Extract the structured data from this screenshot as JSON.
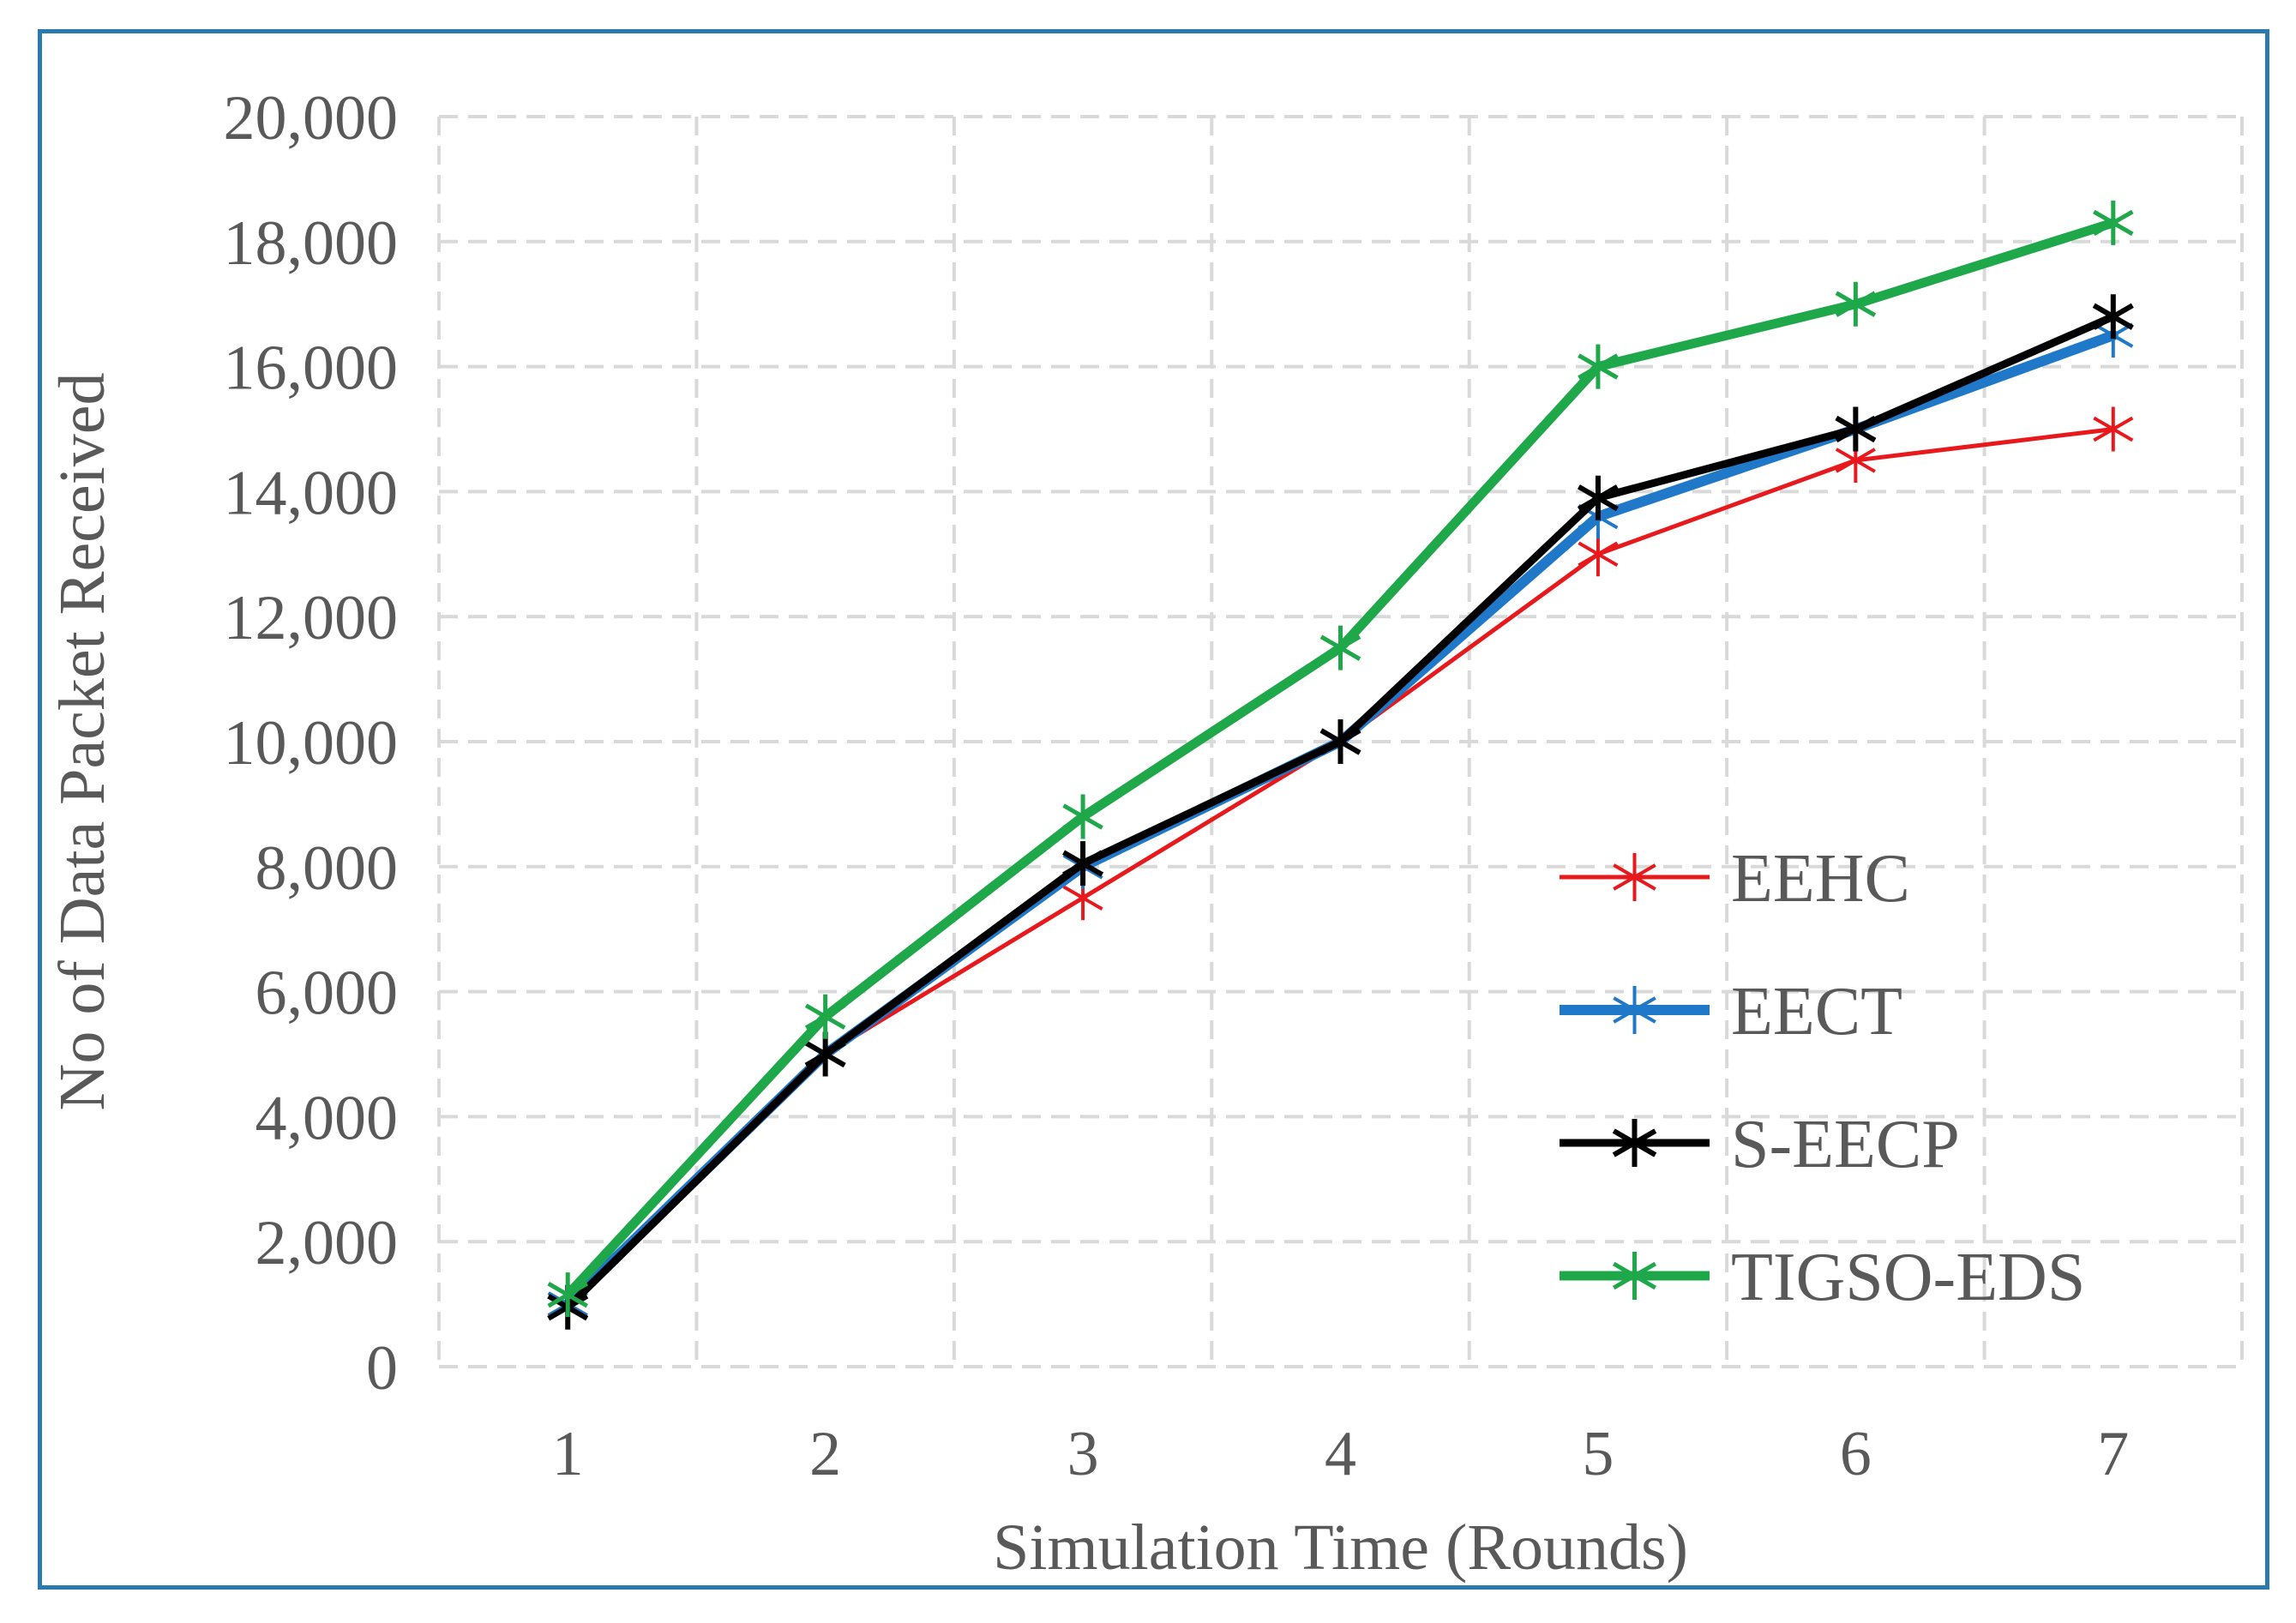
{
  "chart_data": {
    "type": "line",
    "title": "",
    "xlabel": "Simulation Time (Rounds)",
    "ylabel": "No of Data Packet Received",
    "categories": [
      "1",
      "2",
      "3",
      "4",
      "5",
      "6",
      "7"
    ],
    "ylim": [
      0,
      20000
    ],
    "yticks": [
      0,
      2000,
      4000,
      6000,
      8000,
      10000,
      12000,
      14000,
      16000,
      18000,
      20000
    ],
    "ytick_labels": [
      "0",
      "2,000",
      "4,000",
      "6,000",
      "8,000",
      "10,000",
      "12,000",
      "14,000",
      "16,000",
      "18,000",
      "20,000"
    ],
    "grid": true,
    "legend_position": "bottom-right",
    "series": [
      {
        "name": "EEHC",
        "color": "#e8191c",
        "values": [
          1000,
          5000,
          7500,
          10000,
          13000,
          14500,
          15000
        ]
      },
      {
        "name": "EECT",
        "color": "#1f78c8",
        "values": [
          1000,
          5000,
          8000,
          10000,
          13600,
          15000,
          16500
        ]
      },
      {
        "name": "S-EECP",
        "color": "#000000",
        "values": [
          950,
          5000,
          8050,
          10000,
          13900,
          15000,
          16800
        ]
      },
      {
        "name": "TIGSO-EDS",
        "color": "#1fa84a",
        "values": [
          1150,
          5600,
          8800,
          11500,
          16000,
          17000,
          18300
        ]
      }
    ]
  }
}
